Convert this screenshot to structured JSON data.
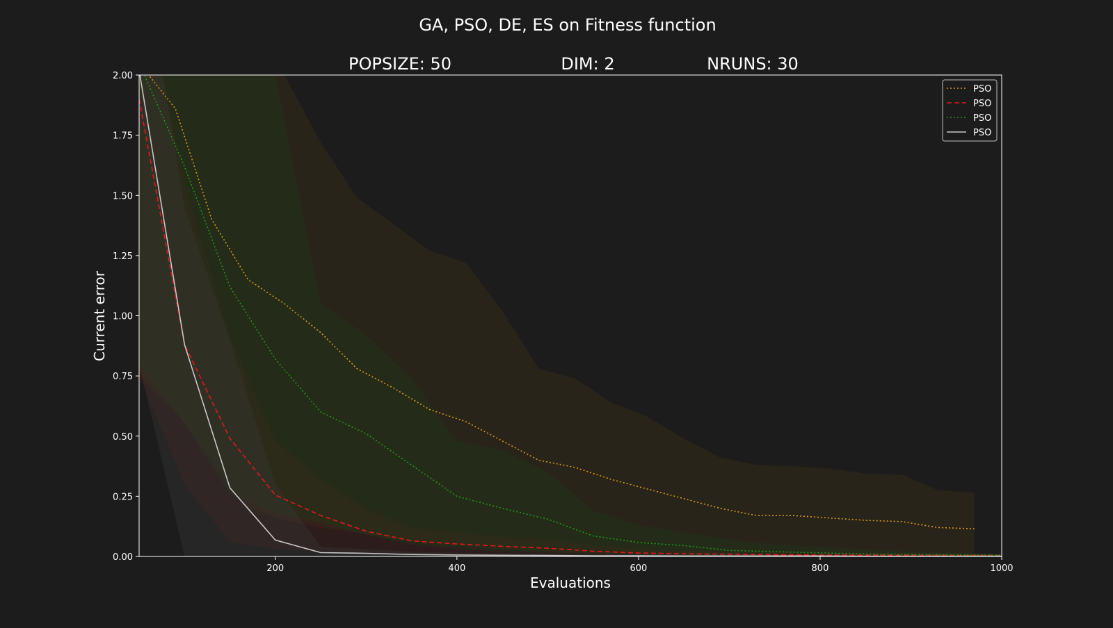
{
  "chart_data": {
    "type": "line",
    "title": "GA, PSO, DE, ES on Fitness function",
    "subtitles": [
      "POPSIZE: 50",
      "DIM: 2",
      "NRUNS: 30"
    ],
    "xlabel": "Evaluations",
    "ylabel": "Current error",
    "xlim": [
      50,
      1000
    ],
    "ylim": [
      0,
      2
    ],
    "xticks": [
      200,
      400,
      600,
      800,
      1000
    ],
    "yticks": [
      0.0,
      0.25,
      0.5,
      0.75,
      1.0,
      1.25,
      1.5,
      1.75,
      2.0
    ],
    "grid": false,
    "legend_position": "top-right",
    "colors": {
      "background": "#1c1c1c",
      "plot_background": "#1c1c1c",
      "axes": "#ffffff",
      "text": "#ffffff"
    },
    "series": [
      {
        "name": "PSO",
        "color": "#d89a1e",
        "style": "dotted",
        "band_color": "#3a2e18",
        "band_opacity": 0.45,
        "x": [
          50,
          90,
          130,
          170,
          210,
          250,
          290,
          330,
          370,
          410,
          450,
          490,
          530,
          570,
          610,
          650,
          690,
          730,
          770,
          810,
          850,
          890,
          930,
          970
        ],
        "y": [
          2.05,
          1.86,
          1.4,
          1.15,
          1.05,
          0.93,
          0.78,
          0.7,
          0.61,
          0.56,
          0.48,
          0.4,
          0.37,
          0.32,
          0.28,
          0.24,
          0.2,
          0.17,
          0.17,
          0.16,
          0.15,
          0.145,
          0.12,
          0.115
        ],
        "upper": [
          2.6,
          2.5,
          2.4,
          2.2,
          2.0,
          1.72,
          1.49,
          1.38,
          1.27,
          1.22,
          1.02,
          0.78,
          0.74,
          0.64,
          0.58,
          0.49,
          0.41,
          0.38,
          0.375,
          0.365,
          0.345,
          0.34,
          0.275,
          0.265
        ],
        "lower": [
          0.75,
          0.6,
          0.4,
          0.2,
          0.15,
          0.12,
          0.1,
          0.07,
          0.05,
          0.04,
          0.03,
          0.02,
          0.015,
          0.01,
          0.01,
          0.008,
          0.006,
          0.005,
          0.004,
          0.003,
          0.003,
          0.002,
          0.002,
          0.002
        ]
      },
      {
        "name": "PSO",
        "color": "#e0191c",
        "style": "dashed",
        "band_color": "#4a1f1c",
        "band_opacity": 0.35,
        "x": [
          50,
          100,
          150,
          200,
          250,
          300,
          350,
          400,
          450,
          500,
          550,
          600,
          650,
          700,
          750,
          800,
          850,
          900,
          950,
          1000
        ],
        "y": [
          1.9,
          0.88,
          0.49,
          0.255,
          0.17,
          0.105,
          0.065,
          0.052,
          0.042,
          0.034,
          0.022,
          0.014,
          0.011,
          0.009,
          0.007,
          0.006,
          0.005,
          0.005,
          0.004,
          0.004
        ],
        "upper": [
          2.5,
          1.55,
          0.92,
          0.48,
          0.32,
          0.2,
          0.12,
          0.1,
          0.08,
          0.07,
          0.05,
          0.03,
          0.025,
          0.02,
          0.017,
          0.015,
          0.013,
          0.012,
          0.011,
          0.01
        ],
        "lower": [
          0.75,
          0.3,
          0.06,
          0.03,
          0.02,
          0.01,
          0.005,
          0.004,
          0.003,
          0.002,
          0.002,
          0.001,
          0.001,
          0.001,
          0.001,
          0.001,
          0.0,
          0.0,
          0.0,
          0.0
        ]
      },
      {
        "name": "PSO",
        "color": "#1f9a1a",
        "style": "dotted",
        "band_color": "#1f3a1a",
        "band_opacity": 0.35,
        "x": [
          50,
          100,
          150,
          200,
          250,
          300,
          350,
          400,
          450,
          500,
          550,
          600,
          650,
          700,
          750,
          800,
          850,
          900,
          950,
          1000
        ],
        "y": [
          2.05,
          1.62,
          1.12,
          0.82,
          0.6,
          0.51,
          0.38,
          0.25,
          0.2,
          0.155,
          0.085,
          0.058,
          0.045,
          0.025,
          0.02,
          0.015,
          0.01,
          0.008,
          0.006,
          0.005
        ],
        "upper": [
          2.4,
          2.5,
          2.5,
          2.0,
          1.05,
          0.92,
          0.74,
          0.48,
          0.44,
          0.35,
          0.19,
          0.13,
          0.1,
          0.07,
          0.05,
          0.04,
          0.03,
          0.02,
          0.015,
          0.01
        ],
        "lower": [
          0.8,
          0.55,
          0.26,
          0.18,
          0.14,
          0.09,
          0.05,
          0.03,
          0.02,
          0.015,
          0.01,
          0.006,
          0.004,
          0.003,
          0.002,
          0.001,
          0.001,
          0.0,
          0.0,
          0.0
        ]
      },
      {
        "name": "PSO",
        "color": "#c8c8c8",
        "style": "solid",
        "band_color": "#3a3a3a",
        "band_opacity": 0.35,
        "x": [
          50,
          100,
          150,
          200,
          250,
          300,
          350,
          400,
          450,
          500,
          550,
          600,
          650,
          700,
          750,
          800,
          850,
          900,
          950,
          1000
        ],
        "y": [
          2.02,
          0.88,
          0.285,
          0.068,
          0.016,
          0.013,
          0.008,
          0.006,
          0.005,
          0.004,
          0.003,
          0.003,
          0.002,
          0.002,
          0.002,
          0.002,
          0.001,
          0.001,
          0.001,
          0.001
        ],
        "upper": [
          2.6,
          1.45,
          0.9,
          0.3,
          0.04,
          0.03,
          0.02,
          0.015,
          0.012,
          0.01,
          0.009,
          0.008,
          0.007,
          0.006,
          0.006,
          0.005,
          0.005,
          0.004,
          0.004,
          0.004
        ],
        "lower": [
          0.8,
          0.0,
          0.0,
          0.0,
          0.0,
          0.0,
          0.0,
          0.0,
          0.0,
          0.0,
          0.0,
          0.0,
          0.0,
          0.0,
          0.0,
          0.0,
          0.0,
          0.0,
          0.0,
          0.0
        ]
      }
    ]
  }
}
